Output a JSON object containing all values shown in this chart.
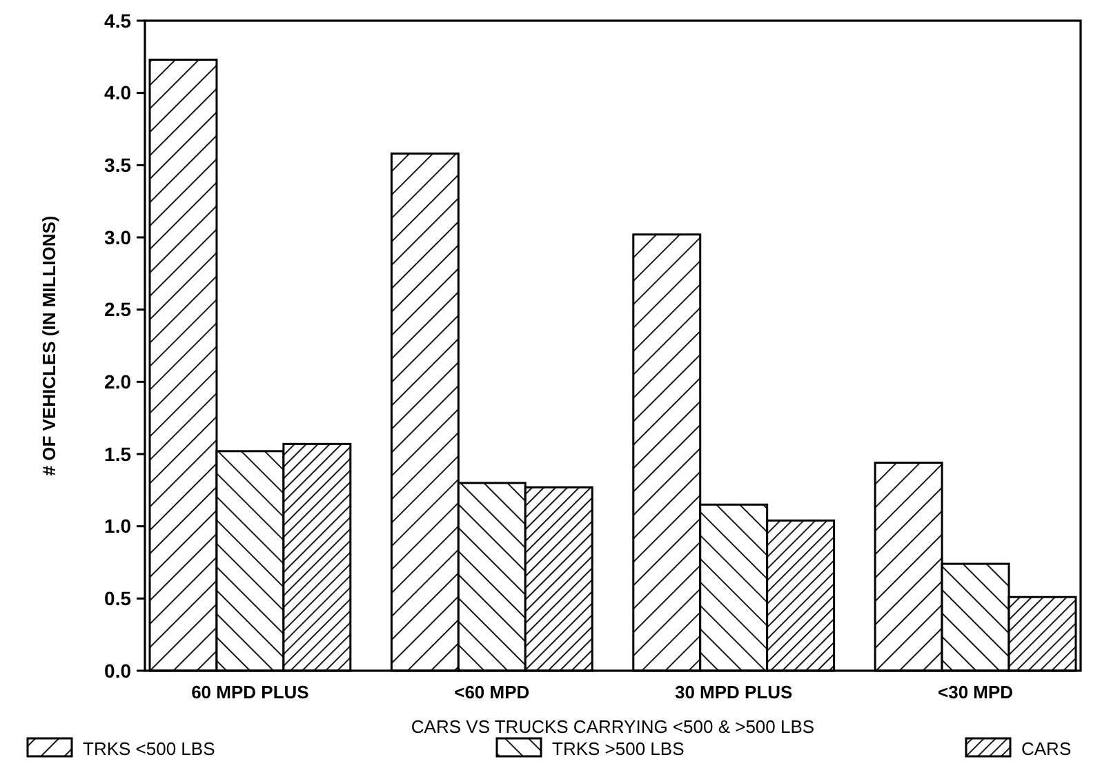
{
  "chart_data": {
    "type": "bar",
    "xlabel": "CARS VS TRUCKS CARRYING <500 & >500 LBS",
    "ylabel": "# OF VEHICLES (IN MILLIONS)",
    "categories": [
      "60 MPD PLUS",
      "<60 MPD",
      "30 MPD PLUS",
      "<30 MPD"
    ],
    "series": [
      {
        "name": "TRKS <500 LBS",
        "color": "#000000",
        "values": [
          4.23,
          3.58,
          3.02,
          1.44
        ]
      },
      {
        "name": "TRKS >500 LBS",
        "color": "#000000",
        "values": [
          1.52,
          1.3,
          1.15,
          0.74
        ]
      },
      {
        "name": "CARS",
        "color": "#000000",
        "values": [
          1.57,
          1.27,
          1.04,
          0.51
        ]
      }
    ],
    "ylim": [
      0,
      4.5
    ],
    "yticks": [
      {
        "value": 0,
        "label": "0.0"
      },
      {
        "value": 0.5,
        "label": "0.5"
      },
      {
        "value": 1,
        "label": "1.0"
      },
      {
        "value": 1.5,
        "label": "1.5"
      },
      {
        "value": 2,
        "label": "2.0"
      },
      {
        "value": 2.5,
        "label": "2.5"
      },
      {
        "value": 3,
        "label": "3.0"
      },
      {
        "value": 3.5,
        "label": "3.5"
      },
      {
        "value": 4,
        "label": "4.0"
      },
      {
        "value": 4.5,
        "label": "4.5"
      }
    ],
    "grid": false,
    "legend": "bottom"
  }
}
